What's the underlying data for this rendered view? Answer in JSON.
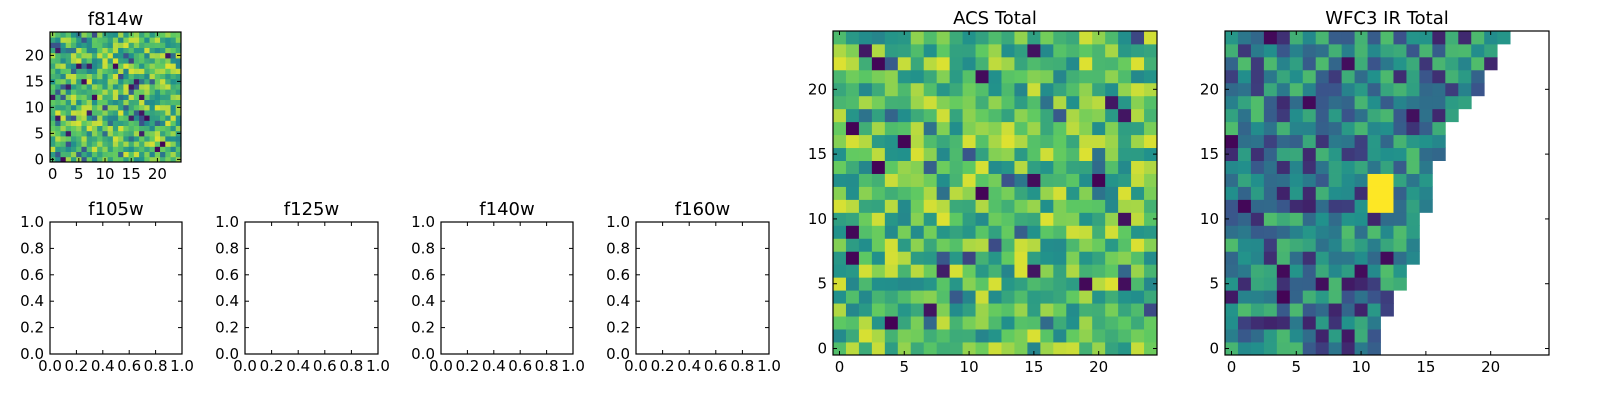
{
  "chart_data": [
    {
      "id": "f814w",
      "type": "heatmap",
      "title": "f814w",
      "grid_size": 25,
      "xlim": [
        -0.5,
        24.5
      ],
      "ylim": [
        -0.5,
        24.5
      ],
      "xticks": [
        0,
        5,
        10,
        15,
        20
      ],
      "yticks": [
        0,
        5,
        10,
        15,
        20
      ],
      "origin": "lower",
      "colormap": "viridis",
      "fill": "random-noise",
      "seed": 814,
      "value_range": [
        0,
        1
      ]
    },
    {
      "id": "f105w",
      "type": "empty",
      "title": "f105w",
      "xlim": [
        0,
        1
      ],
      "ylim": [
        0,
        1
      ],
      "xticks": [
        0.0,
        0.2,
        0.4,
        0.6,
        0.8,
        1.0
      ],
      "yticks": [
        0.0,
        0.2,
        0.4,
        0.6,
        0.8,
        1.0
      ],
      "tick_format": "0.0"
    },
    {
      "id": "f125w",
      "type": "empty",
      "title": "f125w",
      "xlim": [
        0,
        1
      ],
      "ylim": [
        0,
        1
      ],
      "xticks": [
        0.0,
        0.2,
        0.4,
        0.6,
        0.8,
        1.0
      ],
      "yticks": [
        0.0,
        0.2,
        0.4,
        0.6,
        0.8,
        1.0
      ],
      "tick_format": "0.0"
    },
    {
      "id": "f140w",
      "type": "empty",
      "title": "f140w",
      "xlim": [
        0,
        1
      ],
      "ylim": [
        0,
        1
      ],
      "xticks": [
        0.0,
        0.2,
        0.4,
        0.6,
        0.8,
        1.0
      ],
      "yticks": [
        0.0,
        0.2,
        0.4,
        0.6,
        0.8,
        1.0
      ],
      "tick_format": "0.0"
    },
    {
      "id": "f160w",
      "type": "empty",
      "title": "f160w",
      "xlim": [
        0,
        1
      ],
      "ylim": [
        0,
        1
      ],
      "xticks": [
        0.0,
        0.2,
        0.4,
        0.6,
        0.8,
        1.0
      ],
      "yticks": [
        0.0,
        0.2,
        0.4,
        0.6,
        0.8,
        1.0
      ],
      "tick_format": "0.0"
    },
    {
      "id": "acs-total",
      "type": "heatmap",
      "title": "ACS Total",
      "grid_size": 25,
      "xlim": [
        -0.5,
        24.5
      ],
      "ylim": [
        -0.5,
        24.5
      ],
      "xticks": [
        0,
        5,
        10,
        15,
        20
      ],
      "yticks": [
        0,
        5,
        10,
        15,
        20
      ],
      "origin": "lower",
      "colormap": "viridis",
      "fill": "random-noise",
      "seed": 2023,
      "value_range": [
        0,
        1
      ]
    },
    {
      "id": "wfc3-ir-total",
      "type": "heatmap",
      "title": "WFC3 IR Total",
      "grid_size": 25,
      "xlim": [
        -0.5,
        24.5
      ],
      "ylim": [
        -0.5,
        24.5
      ],
      "xticks": [
        0,
        5,
        10,
        15,
        20
      ],
      "yticks": [
        0,
        5,
        10,
        15,
        20
      ],
      "origin": "lower",
      "colormap": "viridis",
      "fill": "random-noise-triangular",
      "seed": 3141,
      "value_range": [
        0,
        1
      ],
      "row_extent": [
        11,
        11,
        11,
        12,
        12,
        13,
        13,
        14,
        14,
        14,
        14,
        15,
        15,
        15,
        15,
        16,
        16,
        16,
        17,
        18,
        19,
        19,
        20,
        20,
        21
      ],
      "highlight": {
        "x": [
          11,
          12
        ],
        "y": [
          11,
          12,
          13
        ],
        "value": 1.0
      }
    }
  ],
  "colors": {
    "axis": "#000000",
    "background": "#ffffff",
    "viridis_stops": [
      "#440154",
      "#3b528b",
      "#21918c",
      "#5ec962",
      "#fde725"
    ]
  }
}
